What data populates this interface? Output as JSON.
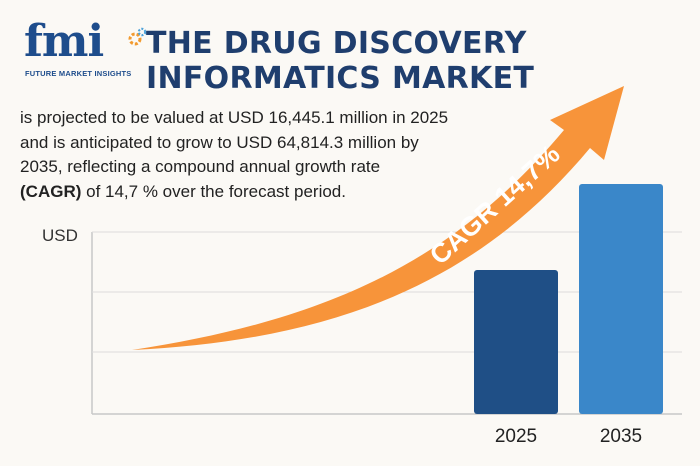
{
  "logo": {
    "word": "fmi",
    "subtitle": "FUTURE MARKET INSIGHTS",
    "icon": "gear-icon",
    "colors": {
      "primary": "#1e4d8c",
      "gear_orange": "#f29a2e",
      "gear_blue": "#4fa3d9"
    }
  },
  "title": {
    "line1": "THE DRUG DISCOVERY",
    "line2": "INFORMATICS MARKET"
  },
  "description": {
    "line1": "is projected to be valued at USD 16,445.1 million in 2025",
    "line2": "and is anticipated to grow to USD 64,814.3 million by",
    "line3": "2035, reflecting a compound annual growth rate",
    "line4_bold": "(CAGR)",
    "line4_rest": " of 14,7 % over the forecast period."
  },
  "chart_data": {
    "type": "bar",
    "categories": [
      "2025",
      "2035"
    ],
    "values": [
      16445.1,
      64814.3
    ],
    "ylabel": "USD",
    "title": "",
    "xlabel": "",
    "grid": true,
    "annotation": "CAGR 14,7%",
    "colors": {
      "bar_2025": "#1f4f86",
      "bar_2035": "#3a87c9",
      "arrow": "#f7943a",
      "axis": "#c8c8c8"
    }
  }
}
